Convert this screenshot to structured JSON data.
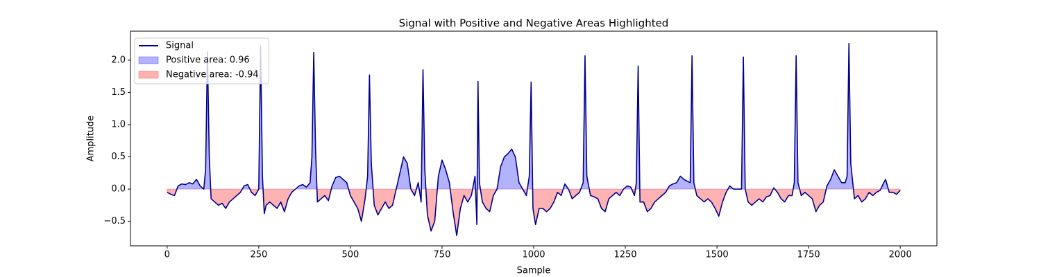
{
  "chart_data": {
    "type": "line",
    "title": "Signal with Positive and Negative Areas Highlighted",
    "xlabel": "Sample",
    "ylabel": "Amplitude",
    "x": [
      0,
      10,
      20,
      30,
      40,
      50,
      60,
      70,
      80,
      90,
      100,
      105,
      110,
      115,
      120,
      130,
      140,
      150,
      160,
      170,
      180,
      190,
      200,
      210,
      220,
      230,
      240,
      250,
      255,
      260,
      265,
      270,
      280,
      290,
      300,
      310,
      320,
      330,
      340,
      350,
      360,
      370,
      380,
      390,
      395,
      400,
      405,
      410,
      420,
      430,
      440,
      450,
      460,
      470,
      480,
      490,
      500,
      510,
      520,
      530,
      540,
      547,
      552,
      557,
      565,
      575,
      585,
      595,
      605,
      615,
      625,
      635,
      645,
      655,
      665,
      675,
      685,
      693,
      698,
      703,
      710,
      720,
      730,
      740,
      750,
      760,
      770,
      780,
      790,
      800,
      810,
      820,
      830,
      840,
      845,
      848,
      852,
      860,
      870,
      880,
      890,
      900,
      910,
      920,
      930,
      940,
      950,
      960,
      970,
      980,
      988,
      993,
      998,
      1005,
      1015,
      1025,
      1035,
      1045,
      1055,
      1065,
      1075,
      1085,
      1095,
      1105,
      1115,
      1125,
      1135,
      1140,
      1145,
      1155,
      1165,
      1175,
      1185,
      1195,
      1205,
      1215,
      1225,
      1235,
      1245,
      1255,
      1265,
      1275,
      1280,
      1285,
      1290,
      1300,
      1310,
      1320,
      1330,
      1340,
      1350,
      1360,
      1370,
      1380,
      1390,
      1400,
      1410,
      1420,
      1427,
      1432,
      1437,
      1445,
      1455,
      1465,
      1475,
      1485,
      1495,
      1505,
      1515,
      1525,
      1535,
      1545,
      1555,
      1567,
      1572,
      1577,
      1585,
      1595,
      1605,
      1615,
      1625,
      1635,
      1645,
      1655,
      1665,
      1675,
      1685,
      1695,
      1705,
      1711,
      1716,
      1721,
      1730,
      1740,
      1750,
      1760,
      1770,
      1780,
      1790,
      1800,
      1810,
      1820,
      1830,
      1840,
      1850,
      1855,
      1860,
      1865,
      1875,
      1885,
      1895,
      1905,
      1915,
      1925,
      1935,
      1945,
      1955,
      1960,
      1970,
      1980,
      1990,
      2000
    ],
    "series": [
      {
        "name": "Signal",
        "color": "#00008b",
        "values": [
          -0.05,
          -0.08,
          -0.1,
          0.05,
          0.08,
          0.07,
          0.1,
          0.08,
          0.15,
          0.05,
          0,
          0.3,
          2.13,
          0.5,
          -0.15,
          -0.2,
          -0.25,
          -0.22,
          -0.3,
          -0.2,
          -0.15,
          -0.1,
          -0.05,
          0.05,
          0.07,
          -0.05,
          -0.1,
          0,
          2.22,
          0.2,
          -0.38,
          -0.25,
          -0.2,
          -0.25,
          -0.3,
          -0.2,
          -0.35,
          -0.15,
          -0.05,
          0,
          0.05,
          0.07,
          0.03,
          0.1,
          0.5,
          2.12,
          0.6,
          -0.2,
          -0.15,
          -0.1,
          -0.18,
          0.05,
          0.18,
          0.2,
          0.15,
          0.1,
          -0.1,
          -0.2,
          -0.3,
          -0.5,
          -0.15,
          0.2,
          1.77,
          0.4,
          -0.25,
          -0.4,
          -0.3,
          -0.2,
          -0.3,
          -0.25,
          0,
          0.25,
          0.5,
          0.4,
          0,
          -0.1,
          0.1,
          -0.2,
          1.85,
          0.3,
          -0.4,
          -0.65,
          -0.5,
          0.2,
          0.45,
          0.3,
          0.1,
          -0.35,
          -0.72,
          -0.3,
          -0.1,
          -0.2,
          -0.1,
          0.2,
          -0.55,
          1.67,
          0.1,
          -0.2,
          -0.3,
          -0.35,
          -0.1,
          0,
          0.35,
          0.5,
          0.55,
          0.62,
          0.5,
          0.1,
          0,
          -0.1,
          0.2,
          1.66,
          -0.3,
          -0.55,
          -0.3,
          -0.3,
          -0.35,
          -0.3,
          -0.2,
          -0.05,
          -0.1,
          0.08,
          0,
          -0.15,
          -0.1,
          -0.05,
          0.1,
          2.07,
          0.2,
          -0.1,
          -0.12,
          -0.15,
          -0.3,
          -0.35,
          -0.15,
          -0.1,
          -0.05,
          -0.1,
          0,
          0.05,
          0.03,
          -0.1,
          0.1,
          1.91,
          -0.2,
          -0.2,
          -0.35,
          -0.3,
          -0.2,
          -0.15,
          -0.1,
          -0.05,
          0.05,
          0.08,
          0.1,
          0.2,
          0.15,
          0.12,
          0.1,
          2.07,
          0.1,
          -0.1,
          -0.15,
          -0.2,
          -0.15,
          -0.2,
          -0.3,
          -0.42,
          -0.2,
          -0.05,
          0.05,
          0,
          0,
          0,
          2.05,
          0,
          -0.2,
          -0.25,
          -0.2,
          -0.15,
          -0.2,
          -0.12,
          -0.1,
          0.02,
          -0.05,
          -0.15,
          -0.2,
          -0.1,
          -0.1,
          0.1,
          2.07,
          0.1,
          -0.1,
          -0.05,
          -0.1,
          -0.15,
          -0.35,
          -0.25,
          -0.2,
          0.05,
          0.15,
          0.3,
          0.2,
          0.1,
          0.1,
          0.2,
          2.26,
          0.4,
          -0.15,
          -0.1,
          -0.2,
          -0.15,
          -0.05,
          -0.1,
          -0.05,
          -0.02,
          0.1,
          0.15,
          -0.05,
          -0.05,
          -0.08,
          -0.02
        ]
      }
    ],
    "positive_area": {
      "name": "Positive area: 0.96",
      "color": "#0000ff"
    },
    "negative_area": {
      "name": "Negative area: -0.94",
      "color": "#ff0000"
    },
    "xlim": [
      -100,
      2100
    ],
    "ylim": [
      -0.88,
      2.45
    ],
    "xticks": [
      0,
      250,
      500,
      750,
      1000,
      1250,
      1500,
      1750,
      2000
    ],
    "yticks": [
      {
        "value": -0.5,
        "label": "−0.5"
      },
      {
        "value": 0,
        "label": "0.0"
      },
      0.5,
      {
        "value": 1,
        "label": "1.0"
      },
      1.5,
      {
        "value": 2,
        "label": "2.0"
      }
    ],
    "legend": "upper left"
  }
}
